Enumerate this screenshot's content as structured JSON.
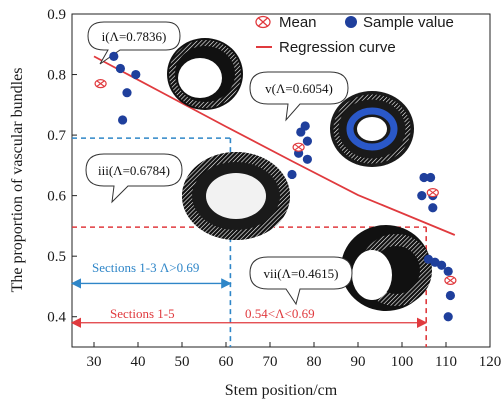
{
  "chart_data": {
    "type": "scatter",
    "xlabel": "Stem position/cm",
    "ylabel": "The proportion of vascular bundles",
    "xlim": [
      25,
      120
    ],
    "ylim": [
      0.35,
      0.9
    ],
    "xticks": [
      "30",
      "40",
      "50",
      "60",
      "70",
      "80",
      "90",
      "100",
      "110",
      "120"
    ],
    "yticks": [
      "0.4",
      "0.5",
      "0.6",
      "0.7",
      "0.8",
      "0.9"
    ],
    "legend_position": "top-right",
    "legend": {
      "mean": "Mean",
      "sample": "Sample value",
      "regression": "Regression curve"
    },
    "colors": {
      "mean": "#e03a3e",
      "sample": "#1f3f9c",
      "regression": "#e03a3e",
      "blue_guide": "#2f86c8",
      "red_guide": "#e03a3e"
    },
    "series": [
      {
        "name": "Sample value",
        "points": [
          [
            34.5,
            0.83
          ],
          [
            36,
            0.81
          ],
          [
            39.5,
            0.8
          ],
          [
            37.5,
            0.77
          ],
          [
            36.5,
            0.725
          ],
          [
            78,
            0.715
          ],
          [
            77,
            0.705
          ],
          [
            78.5,
            0.69
          ],
          [
            76.5,
            0.67
          ],
          [
            78.5,
            0.66
          ],
          [
            75,
            0.635
          ],
          [
            105,
            0.63
          ],
          [
            106.5,
            0.63
          ],
          [
            104.5,
            0.6
          ],
          [
            107,
            0.6
          ],
          [
            107,
            0.58
          ],
          [
            106,
            0.495
          ],
          [
            107.5,
            0.49
          ],
          [
            109,
            0.485
          ],
          [
            110.5,
            0.475
          ],
          [
            111,
            0.435
          ],
          [
            110.5,
            0.4
          ]
        ]
      },
      {
        "name": "Mean",
        "points": [
          [
            31.5,
            0.785
          ],
          [
            76.5,
            0.68
          ],
          [
            107,
            0.605
          ],
          [
            111,
            0.46
          ]
        ]
      },
      {
        "name": "Regression curve",
        "points": [
          [
            30,
            0.83
          ],
          [
            45,
            0.772
          ],
          [
            60,
            0.714
          ],
          [
            75,
            0.657
          ],
          [
            90,
            0.601
          ],
          [
            112,
            0.535
          ]
        ]
      }
    ],
    "guides": {
      "blue_h": {
        "y": 0.695,
        "x_from": 25,
        "x_to": 61
      },
      "blue_v": {
        "x": 61,
        "y_from": 0.695,
        "y_to": 0.35
      },
      "red_h": {
        "y": 0.548,
        "x_from": 25,
        "x_to": 105.5
      },
      "red_v": {
        "x": 105.5,
        "y_from": 0.548,
        "y_to": 0.35
      },
      "blue_arrow": {
        "y": 0.455,
        "x_from": 25,
        "x_to": 61
      },
      "red_arrow": {
        "y": 0.39,
        "x_from": 25,
        "x_to": 105.5
      }
    },
    "annotations": {
      "sections_1_3": "Sections 1-3 Λ>0.69",
      "sections_1_5": "Sections 1-5",
      "range_1_5": "0.54<Λ<0.69"
    },
    "callouts": [
      {
        "id": "i",
        "label": "i(Λ=0.7836)"
      },
      {
        "id": "iii",
        "label": "iii(Λ=0.6784)"
      },
      {
        "id": "v",
        "label": "v(Λ=0.6054)"
      },
      {
        "id": "vii",
        "label": "vii(Λ=0.4615)"
      }
    ]
  }
}
